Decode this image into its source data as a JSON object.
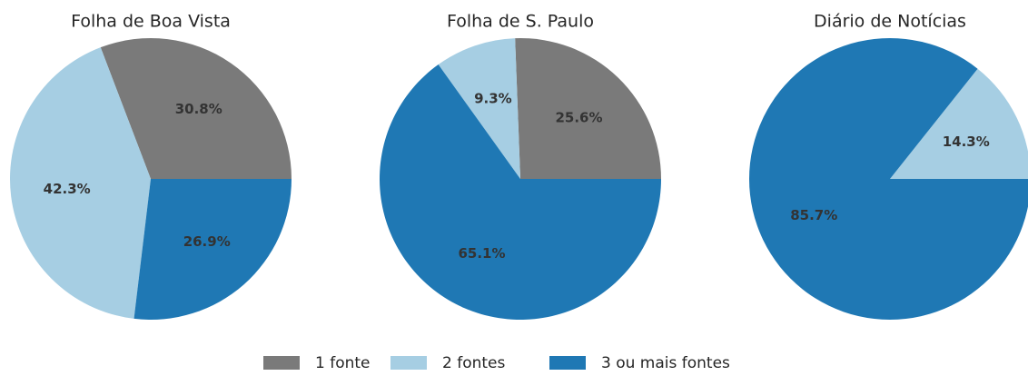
{
  "chart_data": [
    {
      "type": "pie",
      "title": "Folha de Boa Vista",
      "values": [
        30.8,
        42.3,
        26.9
      ],
      "value_labels": [
        "30.8%",
        "42.3%",
        "26.9%"
      ],
      "colors": [
        "#7a7a7a",
        "#a6cee3",
        "#1f78b4"
      ]
    },
    {
      "type": "pie",
      "title": "Folha de S. Paulo",
      "values": [
        25.6,
        9.3,
        65.1
      ],
      "value_labels": [
        "25.6%",
        "9.3%",
        "65.1%"
      ],
      "colors": [
        "#7a7a7a",
        "#a6cee3",
        "#1f78b4"
      ]
    },
    {
      "type": "pie",
      "title": "Diário de Notícias",
      "values": [
        14.3,
        85.7
      ],
      "value_labels": [
        "14.3%",
        "85.7%"
      ],
      "colors": [
        "#a6cee3",
        "#1f78b4"
      ]
    }
  ],
  "legend": {
    "labels": [
      "1 fonte",
      "2 fontes",
      "3 ou mais fontes"
    ],
    "colors": [
      "#7a7a7a",
      "#a6cee3",
      "#1f78b4"
    ]
  }
}
